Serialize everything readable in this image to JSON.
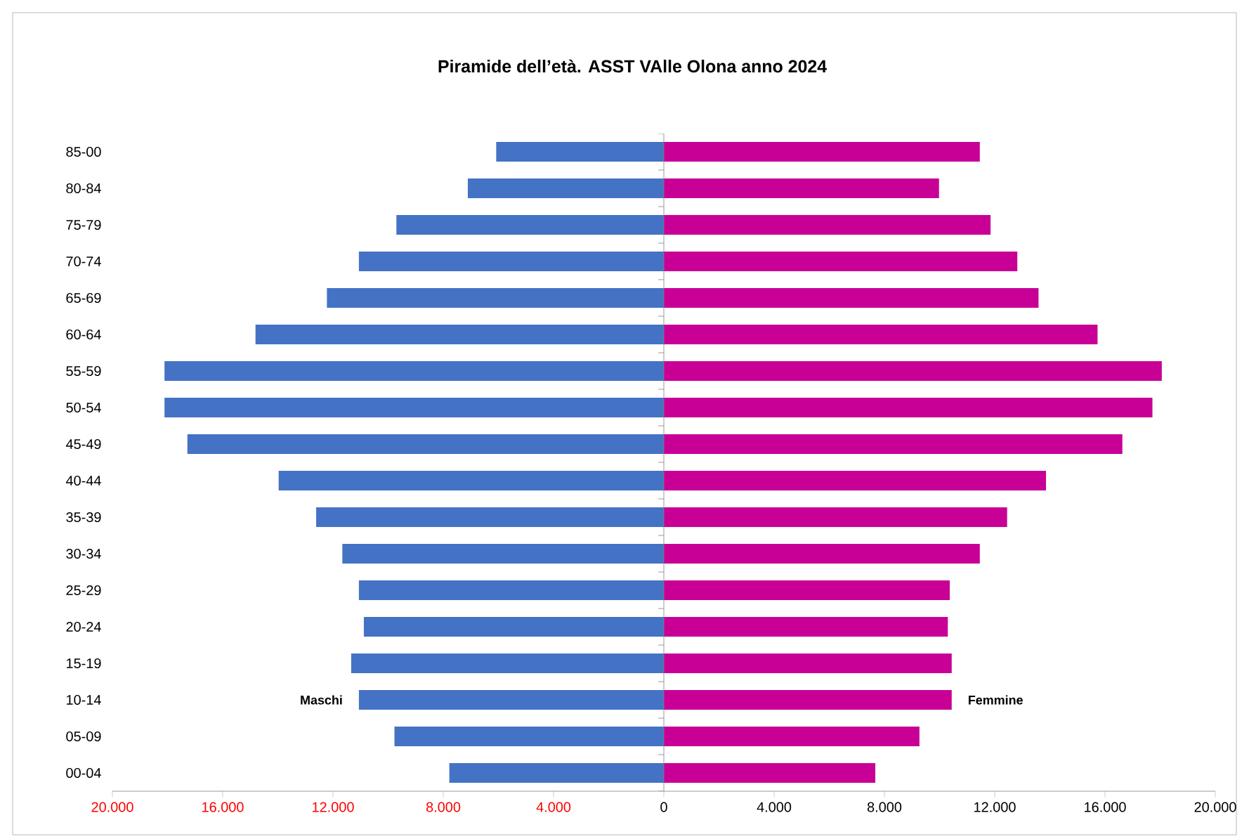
{
  "chart_data": {
    "type": "bar",
    "orientation": "horizontal",
    "title": "Piramide dell’età. ASST VAlle Olona anno 2024",
    "categories": [
      "85-00",
      "80-84",
      "75-79",
      "70-74",
      "65-69",
      "60-64",
      "55-59",
      "50-54",
      "45-49",
      "40-44",
      "35-39",
      "30-34",
      "25-29",
      "20-24",
      "15-19",
      "10-14",
      "05-09",
      "00-04"
    ],
    "series": [
      {
        "name": "Maschi",
        "color": "#4472c4",
        "values": [
          -6080,
          -7110,
          -9700,
          -11060,
          -12220,
          -14810,
          -18110,
          -18110,
          -17280,
          -13970,
          -12610,
          -11660,
          -11060,
          -10880,
          -11340,
          -11060,
          -9770,
          -7780
        ]
      },
      {
        "name": "Femmine",
        "color": "#c80096",
        "values": [
          11460,
          9980,
          11850,
          12820,
          13590,
          15730,
          18060,
          17720,
          16630,
          13860,
          12450,
          11460,
          10370,
          10300,
          10440,
          10440,
          9270,
          7670
        ]
      }
    ],
    "xlim": [
      -20000,
      20000
    ],
    "xticks": [
      {
        "value": -20000,
        "label": "20.000"
      },
      {
        "value": -16000,
        "label": "16.000"
      },
      {
        "value": -12000,
        "label": "12.000"
      },
      {
        "value": -8000,
        "label": "8.000"
      },
      {
        "value": -4000,
        "label": "4.000"
      },
      0,
      {
        "value": 4000,
        "label": "4.000"
      },
      {
        "value": 8000,
        "label": "8.000"
      },
      {
        "value": 12000,
        "label": "12.000"
      },
      {
        "value": 16000,
        "label": "16.000"
      },
      {
        "value": 20000,
        "label": "20.000"
      }
    ],
    "stacked": true
  }
}
